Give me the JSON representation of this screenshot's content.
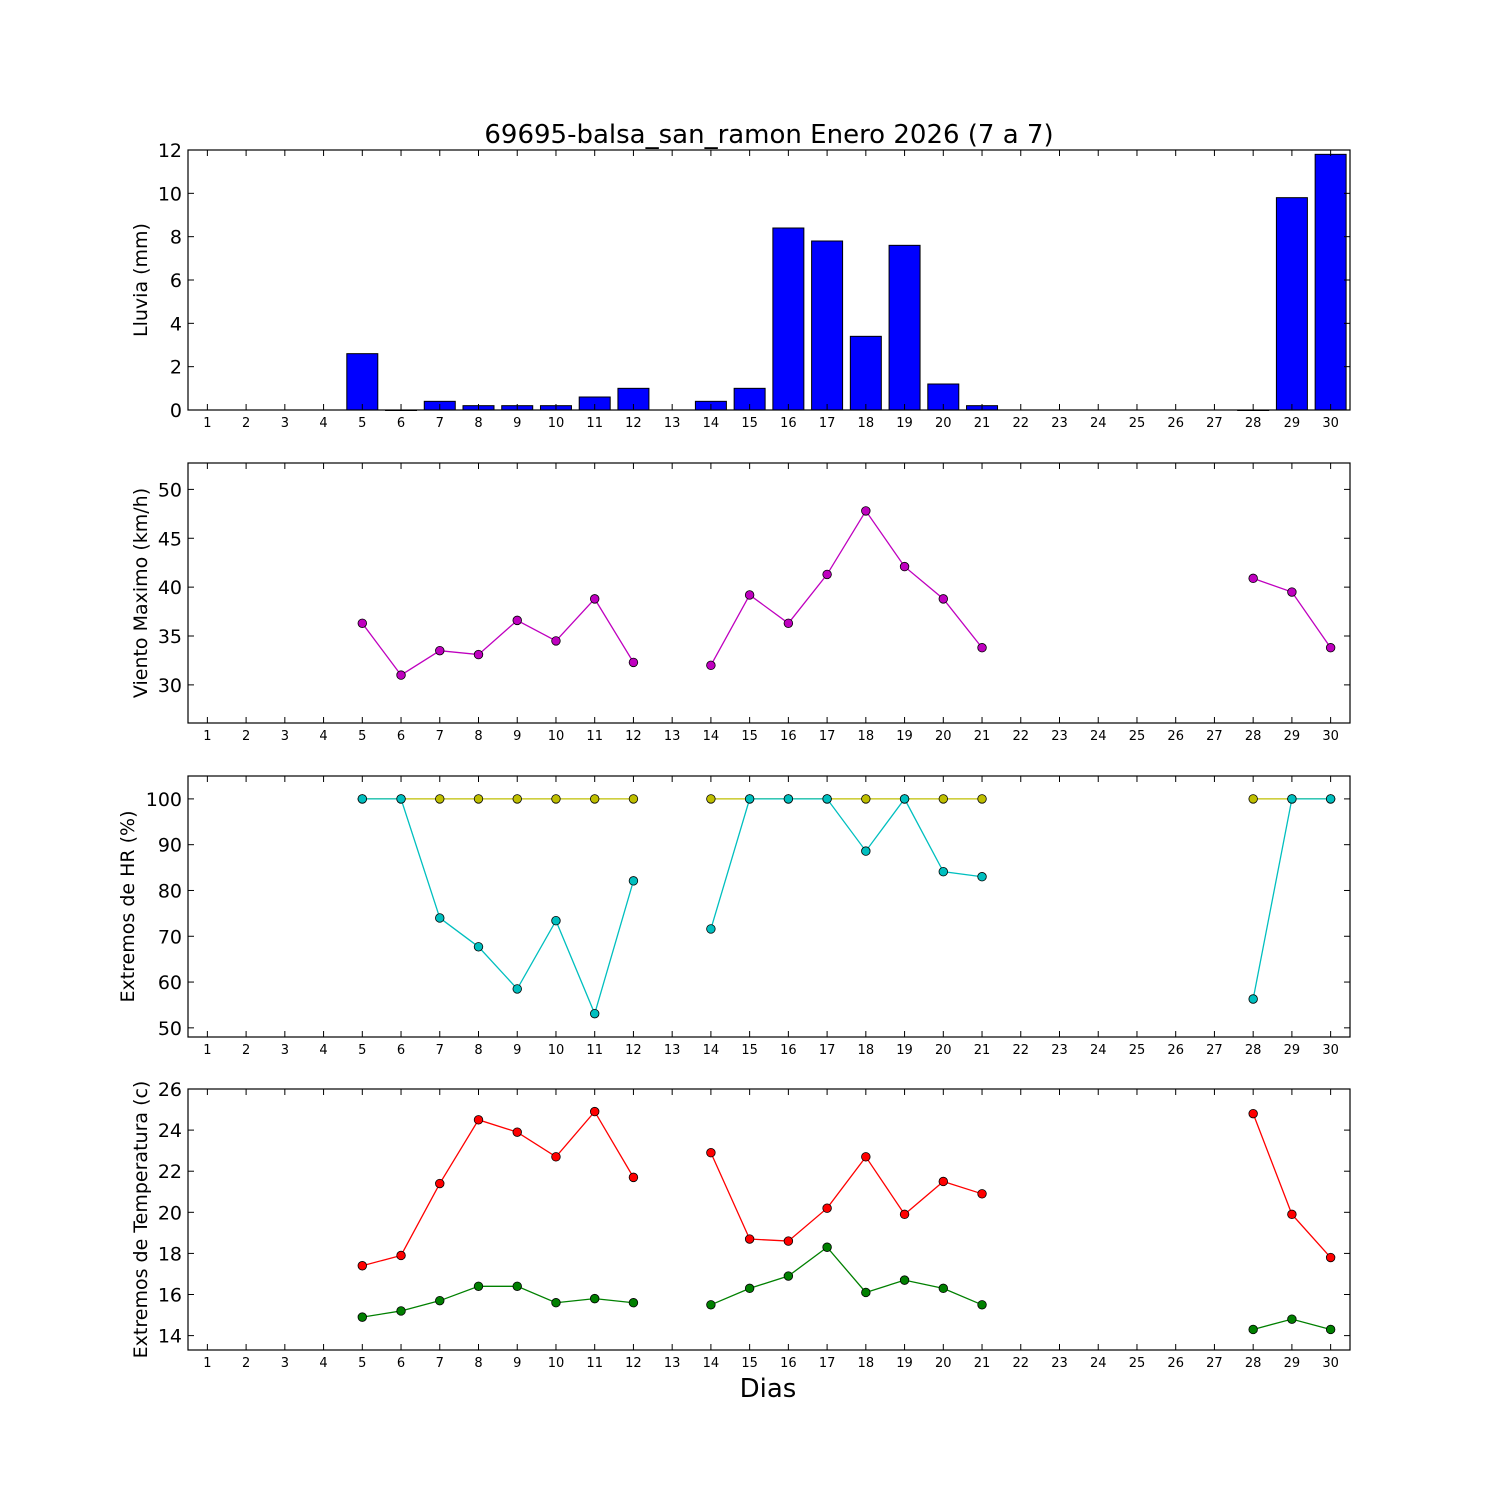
{
  "chart_data": {
    "type": "multi-panel",
    "title": "69695-balsa_san_ramon Enero 2026  (7 a 7)",
    "xlabel": "Dias",
    "days": [
      1,
      2,
      3,
      4,
      5,
      6,
      7,
      8,
      9,
      10,
      11,
      12,
      13,
      14,
      15,
      16,
      17,
      18,
      19,
      20,
      21,
      22,
      23,
      24,
      25,
      26,
      27,
      28,
      29,
      30
    ],
    "xlim": [
      0.5,
      30.5
    ],
    "panels": [
      {
        "type": "bar",
        "ylabel": "Lluvia (mm)",
        "ylim": [
          0,
          12
        ],
        "yticks": [
          0,
          2,
          4,
          6,
          8,
          10,
          12
        ],
        "series": [
          {
            "name": "Lluvia",
            "color": "#0000ff",
            "values": [
              null,
              null,
              null,
              null,
              2.6,
              0.0,
              0.4,
              0.2,
              0.2,
              0.2,
              0.6,
              1.0,
              null,
              0.4,
              1.0,
              8.4,
              7.8,
              3.4,
              7.6,
              1.2,
              0.2,
              null,
              null,
              null,
              null,
              null,
              null,
              0.0,
              9.8,
              11.8
            ]
          }
        ]
      },
      {
        "type": "line",
        "ylabel": "Viento Maximo (km/h)",
        "ylim": [
          26.1,
          52.7
        ],
        "yticks": [
          30,
          35,
          40,
          45,
          50
        ],
        "series": [
          {
            "name": "Viento Maximo",
            "color": "#bf00bf",
            "values": [
              null,
              null,
              null,
              null,
              36.3,
              31.0,
              33.5,
              33.1,
              36.6,
              34.5,
              38.8,
              32.3,
              null,
              32.0,
              39.2,
              36.3,
              41.3,
              47.8,
              42.1,
              38.8,
              33.8,
              null,
              null,
              null,
              null,
              null,
              null,
              40.9,
              39.5,
              33.8
            ]
          }
        ]
      },
      {
        "type": "line",
        "ylabel": "Extremos de HR (%)",
        "ylim": [
          48,
          105
        ],
        "yticks": [
          50,
          60,
          70,
          80,
          90,
          100
        ],
        "series": [
          {
            "name": "HR maxima",
            "color": "#bfbf00",
            "values": [
              null,
              null,
              null,
              null,
              100,
              100,
              100,
              100,
              100,
              100,
              100,
              100,
              null,
              100,
              100,
              100,
              100,
              100,
              100,
              100,
              100,
              null,
              null,
              null,
              null,
              null,
              null,
              100,
              100,
              100
            ]
          },
          {
            "name": "HR minima",
            "color": "#00bfbf",
            "values": [
              null,
              null,
              null,
              null,
              100,
              100,
              74.0,
              67.7,
              58.5,
              73.4,
              53.1,
              82.1,
              null,
              71.6,
              100,
              100,
              100,
              88.6,
              100,
              84.1,
              83.0,
              null,
              null,
              null,
              null,
              null,
              null,
              56.3,
              100,
              100
            ]
          }
        ]
      },
      {
        "type": "line",
        "ylabel": "Extremos de Temperatura (c)",
        "ylim": [
          13.3,
          26
        ],
        "yticks": [
          14,
          16,
          18,
          20,
          22,
          24,
          26
        ],
        "series": [
          {
            "name": "Temperatura maxima",
            "color": "#ff0000",
            "values": [
              null,
              null,
              null,
              null,
              17.4,
              17.9,
              21.4,
              24.5,
              23.9,
              22.7,
              24.9,
              21.7,
              null,
              22.9,
              18.7,
              18.6,
              20.2,
              22.7,
              19.9,
              21.5,
              20.9,
              null,
              null,
              null,
              null,
              null,
              null,
              24.8,
              19.9,
              17.8
            ]
          },
          {
            "name": "Temperatura minima",
            "color": "#008000",
            "values": [
              null,
              null,
              null,
              null,
              14.9,
              15.2,
              15.7,
              16.4,
              16.4,
              15.6,
              15.8,
              15.6,
              null,
              15.5,
              16.3,
              16.9,
              18.3,
              16.1,
              16.7,
              16.3,
              15.5,
              null,
              null,
              null,
              null,
              null,
              null,
              14.3,
              14.8,
              14.3
            ]
          }
        ]
      }
    ]
  }
}
